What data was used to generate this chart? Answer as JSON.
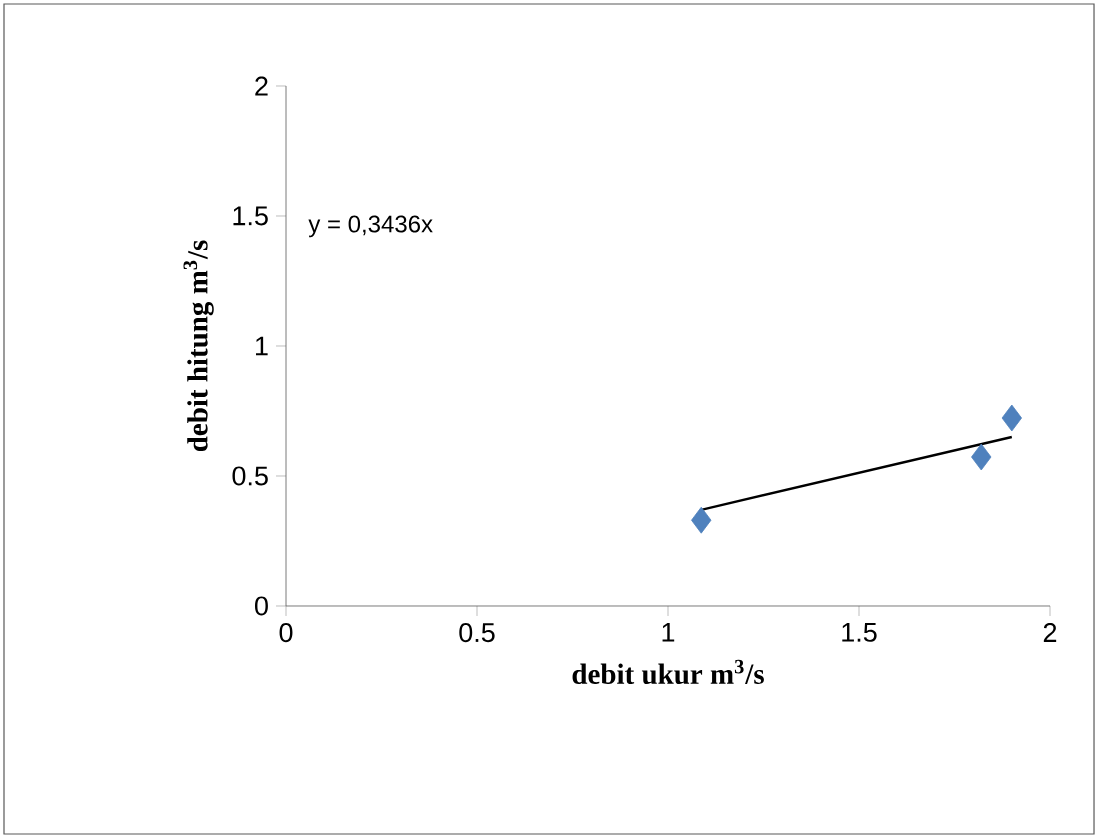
{
  "chart_data": {
    "type": "scatter",
    "xlabel": "debit ukur m$^{3}$/s",
    "ylabel": "debit hitung m$^{3}$/s",
    "annotations": [
      "y = 0,3436x"
    ],
    "xlim": [
      0,
      2
    ],
    "ylim": [
      0,
      2
    ],
    "xticks": [
      0,
      0.5,
      1,
      1.5,
      2
    ],
    "yticks": [
      0,
      0.5,
      1,
      1.5,
      2
    ],
    "marker": "diamond",
    "series": [
      {
        "color": "#4f81bd",
        "x": [
          1.087,
          1.82,
          1.9
        ],
        "values": [
          0.33,
          0.573,
          0.723
        ]
      },
      {
        "type": "line",
        "color": "#000000",
        "x": [
          1.087,
          1.9
        ],
        "values": [
          0.37,
          0.65
        ],
        "marker": "none",
        "line_style": "solid"
      }
    ]
  }
}
